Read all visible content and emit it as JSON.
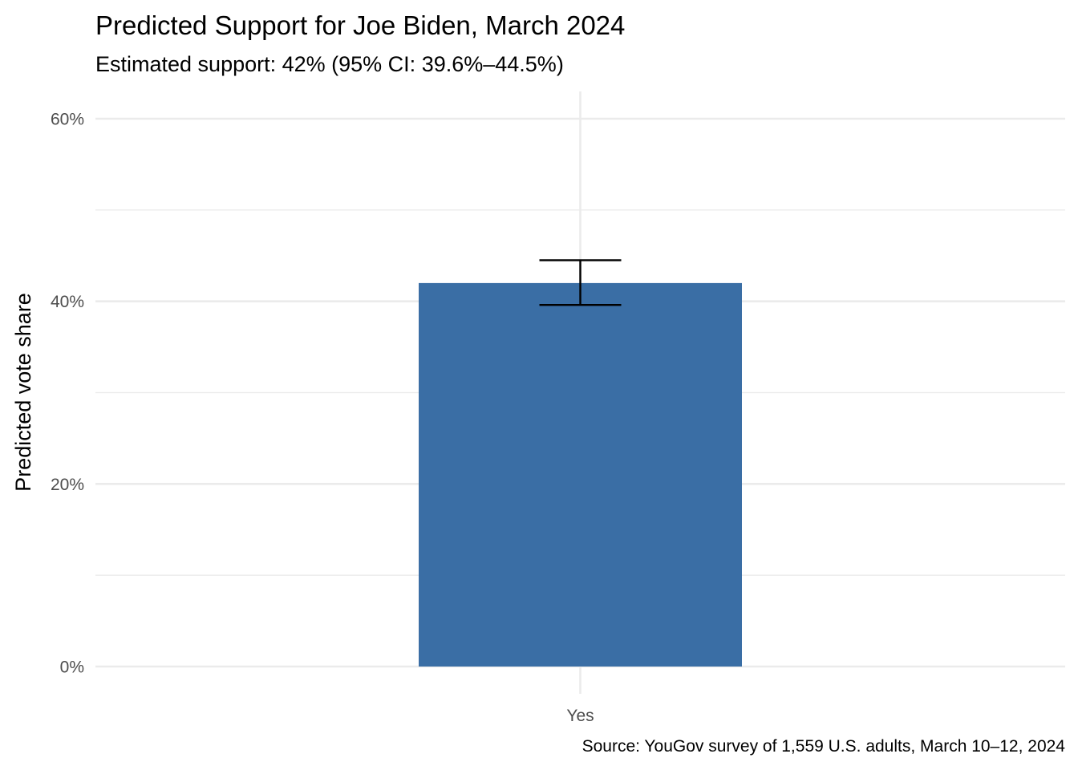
{
  "chart_data": {
    "type": "bar",
    "title": "Predicted Support for Joe Biden, March 2024",
    "subtitle": "Estimated support: 42% (95% CI: 39.6%–44.5%)",
    "caption": "Source: YouGov survey of 1,559 U.S. adults, March 10–12, 2024",
    "xlabel": "",
    "ylabel": "Predicted vote share",
    "categories": [
      "Yes"
    ],
    "values": [
      0.42
    ],
    "error_low": [
      0.396
    ],
    "error_high": [
      0.445
    ],
    "ylim": [
      0,
      0.6
    ],
    "y_ticks": [
      0,
      0.2,
      0.4,
      0.6
    ],
    "y_tick_labels": [
      "0%",
      "20%",
      "40%",
      "60%"
    ],
    "y_minor_ticks": [
      0.1,
      0.3,
      0.5
    ],
    "grid": true,
    "legend": "none",
    "colors": {
      "bar": "#3A6EA5",
      "error_bar": "#000000",
      "grid": "#EBEBEB"
    }
  }
}
